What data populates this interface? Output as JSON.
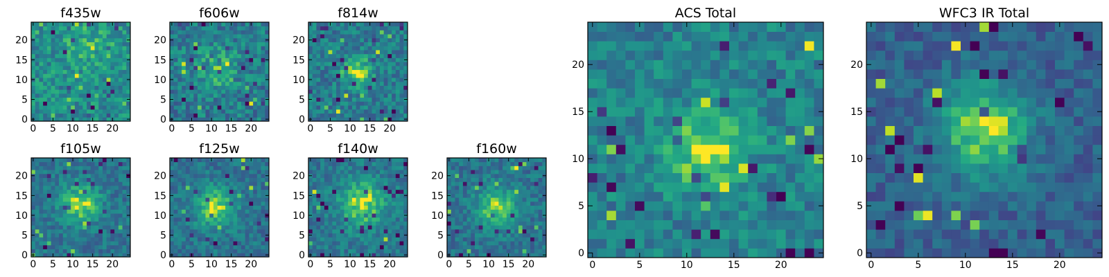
{
  "figure": {
    "colormap": "viridis"
  },
  "chart_data": [
    {
      "type": "heatmap",
      "title": "f435w",
      "grid": [
        25,
        25
      ],
      "xticks": [
        0,
        5,
        10,
        15,
        20
      ],
      "yticks": [
        0,
        5,
        10,
        15,
        20
      ],
      "xlim": [
        -0.5,
        24.5
      ],
      "ylim": [
        -0.5,
        24.5
      ],
      "peak": [
        14,
        19
      ],
      "peak_strength": 0.15,
      "peak_width": 5,
      "noise": 0.32,
      "base": 0.6,
      "seed": 11
    },
    {
      "type": "heatmap",
      "title": "f606w",
      "grid": [
        25,
        25
      ],
      "xticks": [
        0,
        5,
        10,
        15,
        20
      ],
      "yticks": [
        0,
        5,
        10,
        15,
        20
      ],
      "xlim": [
        -0.5,
        24.5
      ],
      "ylim": [
        -0.5,
        24.5
      ],
      "peak": [
        11,
        13
      ],
      "peak_strength": 0.25,
      "peak_width": 4,
      "noise": 0.34,
      "base": 0.52,
      "seed": 23
    },
    {
      "type": "heatmap",
      "title": "f814w",
      "grid": [
        25,
        25
      ],
      "xticks": [
        0,
        5,
        10,
        15,
        20
      ],
      "yticks": [
        0,
        5,
        10,
        15,
        20
      ],
      "xlim": [
        -0.5,
        24.5
      ],
      "ylim": [
        -0.5,
        24.5
      ],
      "peak": [
        12,
        12
      ],
      "peak_strength": 0.45,
      "peak_width": 2.5,
      "noise": 0.3,
      "base": 0.52,
      "seed": 37
    },
    {
      "type": "heatmap",
      "title": "f105w",
      "grid": [
        25,
        25
      ],
      "xticks": [
        0,
        5,
        10,
        15,
        20
      ],
      "yticks": [
        0,
        5,
        10,
        15,
        20
      ],
      "xlim": [
        -0.5,
        24.5
      ],
      "ylim": [
        -0.5,
        24.5
      ],
      "peak": [
        12,
        13
      ],
      "peak_strength": 0.45,
      "peak_width": 3.5,
      "noise": 0.24,
      "base": 0.48,
      "seed": 41
    },
    {
      "type": "heatmap",
      "title": "f125w",
      "grid": [
        25,
        25
      ],
      "xticks": [
        0,
        5,
        10,
        15,
        20
      ],
      "yticks": [
        0,
        5,
        10,
        15,
        20
      ],
      "xlim": [
        -0.5,
        24.5
      ],
      "ylim": [
        -0.5,
        24.5
      ],
      "peak": [
        11,
        12
      ],
      "peak_strength": 0.45,
      "peak_width": 3.5,
      "noise": 0.24,
      "base": 0.48,
      "seed": 53
    },
    {
      "type": "heatmap",
      "title": "f140w",
      "grid": [
        25,
        25
      ],
      "xticks": [
        0,
        5,
        10,
        15,
        20
      ],
      "yticks": [
        0,
        5,
        10,
        15,
        20
      ],
      "xlim": [
        -0.5,
        24.5
      ],
      "ylim": [
        -0.5,
        24.5
      ],
      "peak": [
        13,
        13
      ],
      "peak_strength": 0.45,
      "peak_width": 4,
      "noise": 0.24,
      "base": 0.5,
      "seed": 67
    },
    {
      "type": "heatmap",
      "title": "f160w",
      "grid": [
        25,
        25
      ],
      "xticks": [
        0,
        5,
        10,
        15,
        20
      ],
      "yticks": [
        0,
        5,
        10,
        15,
        20
      ],
      "xlim": [
        -0.5,
        24.5
      ],
      "ylim": [
        -0.5,
        24.5
      ],
      "peak": [
        12,
        12
      ],
      "peak_strength": 0.45,
      "peak_width": 3.5,
      "noise": 0.24,
      "base": 0.48,
      "seed": 79
    },
    {
      "type": "heatmap",
      "title": "ACS Total",
      "grid": [
        25,
        25
      ],
      "xticks": [
        0,
        5,
        10,
        15,
        20
      ],
      "yticks": [
        0,
        5,
        10,
        15,
        20
      ],
      "xlim": [
        -0.5,
        24.5
      ],
      "ylim": [
        -0.5,
        24.5
      ],
      "peak": [
        12,
        11
      ],
      "peak_strength": 0.4,
      "peak_width": 3,
      "noise": 0.28,
      "base": 0.55,
      "seed": 83
    },
    {
      "type": "heatmap",
      "title": "WFC3 IR Total",
      "grid": [
        25,
        25
      ],
      "xticks": [
        0,
        5,
        10,
        15,
        20
      ],
      "yticks": [
        0,
        5,
        10,
        15,
        20
      ],
      "xlim": [
        -0.5,
        24.5
      ],
      "ylim": [
        -0.5,
        24.5
      ],
      "peak": [
        12,
        13
      ],
      "peak_strength": 0.55,
      "peak_width": 3.5,
      "noise": 0.22,
      "base": 0.38,
      "seed": 97
    }
  ]
}
